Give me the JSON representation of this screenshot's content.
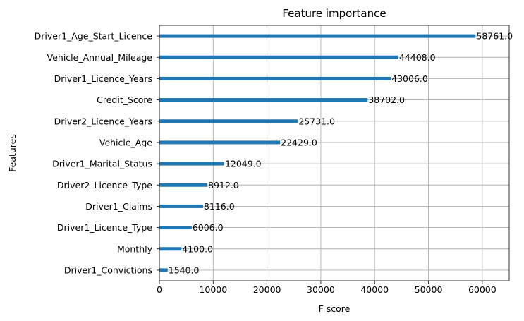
{
  "chart_data": {
    "type": "bar",
    "orientation": "horizontal",
    "title": "Feature importance",
    "xlabel": "F score",
    "ylabel": "Features",
    "xlim": [
      0,
      65000
    ],
    "xticks": [
      0,
      10000,
      20000,
      30000,
      40000,
      50000,
      60000
    ],
    "grid": true,
    "categories": [
      "Driver1_Age_Start_Licence",
      "Vehicle_Annual_Mileage",
      "Driver1_Licence_Years",
      "Credit_Score",
      "Driver2_Licence_Years",
      "Vehicle_Age",
      "Driver1_Marital_Status",
      "Driver2_Licence_Type",
      "Driver1_Claims",
      "Driver1_Licence_Type",
      "Monthly",
      "Driver1_Convictions"
    ],
    "values": [
      58761.0,
      44408.0,
      43006.0,
      38702.0,
      25731.0,
      22429.0,
      12049.0,
      8912.0,
      8116.0,
      6006.0,
      4100.0,
      1540.0
    ],
    "value_labels": [
      "58761.0",
      "44408.0",
      "43006.0",
      "38702.0",
      "25731.0",
      "22429.0",
      "12049.0",
      "8912.0",
      "8116.0",
      "6006.0",
      "4100.0",
      "1540.0"
    ],
    "bar_color": "#1f77b4",
    "grid_color": "#b0b0b0"
  }
}
